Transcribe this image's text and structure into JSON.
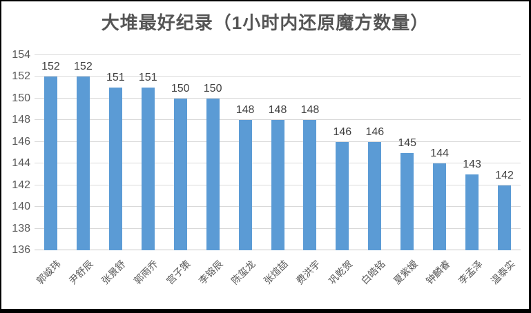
{
  "chart_data": {
    "type": "bar",
    "title": "大堆最好纪录（1小时内还原魔方数量）",
    "categories": [
      "郭峻玮",
      "尹舒辰",
      "张景舒",
      "郭雨乔",
      "宫子策",
      "李镕辰",
      "陈玺龙",
      "张煊喆",
      "费洪宇",
      "巩乾贺",
      "白皓铭",
      "夏紫嫒",
      "钟麟睿",
      "李孟泽",
      "温泰实"
    ],
    "values": [
      152,
      152,
      151,
      151,
      150,
      150,
      148,
      148,
      148,
      146,
      146,
      145,
      144,
      143,
      142
    ],
    "data_labels": [
      "152",
      "152",
      "151",
      "151",
      "150",
      "150",
      "148",
      "148",
      "148",
      "146",
      "146",
      "145",
      "144",
      "143",
      "142"
    ],
    "yticks": [
      "136",
      "138",
      "140",
      "142",
      "144",
      "146",
      "148",
      "150",
      "152",
      "154"
    ],
    "ylim": [
      136,
      154
    ],
    "xlabel": "",
    "ylabel": "",
    "grid": true,
    "legend": "none",
    "colors": {
      "bar": "#5b9bd5",
      "gridline": "#d9d9d9",
      "axis_line": "#c6c6c6",
      "axis_text": "#595959",
      "data_label_text": "#404040",
      "title_text": "#555555",
      "frame_border": "#000000"
    }
  }
}
